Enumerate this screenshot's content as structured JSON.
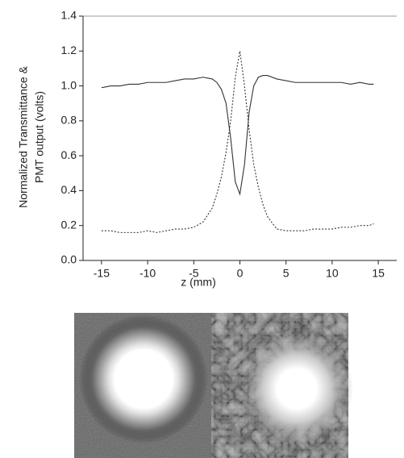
{
  "chart_data": {
    "type": "line",
    "xlabel": "z (mm)",
    "ylabel": [
      "Normalized Transmittance &",
      "PMT output (volts)"
    ],
    "x": [
      -15,
      -14,
      -13,
      -12,
      -11,
      -10,
      -9,
      -8,
      -7,
      -6,
      -5,
      -4,
      -3,
      -2.5,
      -2,
      -1.5,
      -1,
      -0.5,
      0,
      0.5,
      1,
      1.5,
      2,
      2.5,
      3,
      4,
      5,
      6,
      7,
      8,
      9,
      10,
      11,
      12,
      13,
      14,
      14.5
    ],
    "series": [
      {
        "color": "#333333",
        "dashed": false,
        "values": [
          0.99,
          1.0,
          1.0,
          1.01,
          1.01,
          1.02,
          1.02,
          1.02,
          1.03,
          1.04,
          1.04,
          1.05,
          1.04,
          1.02,
          0.98,
          0.9,
          0.7,
          0.45,
          0.38,
          0.55,
          0.85,
          1.0,
          1.05,
          1.06,
          1.06,
          1.04,
          1.03,
          1.02,
          1.02,
          1.02,
          1.02,
          1.02,
          1.02,
          1.01,
          1.02,
          1.01,
          1.01
        ]
      },
      {
        "color": "#333333",
        "dashed": true,
        "values": [
          0.17,
          0.17,
          0.16,
          0.16,
          0.16,
          0.17,
          0.16,
          0.17,
          0.18,
          0.18,
          0.19,
          0.22,
          0.3,
          0.38,
          0.48,
          0.62,
          0.8,
          1.05,
          1.2,
          1.0,
          0.75,
          0.55,
          0.42,
          0.32,
          0.25,
          0.18,
          0.17,
          0.17,
          0.17,
          0.18,
          0.18,
          0.18,
          0.19,
          0.19,
          0.2,
          0.2,
          0.21
        ]
      }
    ],
    "xlim": [
      -17,
      17
    ],
    "xticks": [
      -15,
      -10,
      -5,
      0,
      5,
      10,
      15
    ],
    "ylim": [
      0,
      1.4
    ],
    "yticks": [
      {
        "value": 0,
        "label": "0.0"
      },
      0.2,
      0.4,
      0.6,
      0.8,
      {
        "value": 1,
        "label": "1.0"
      },
      1.2,
      1.4
    ]
  }
}
